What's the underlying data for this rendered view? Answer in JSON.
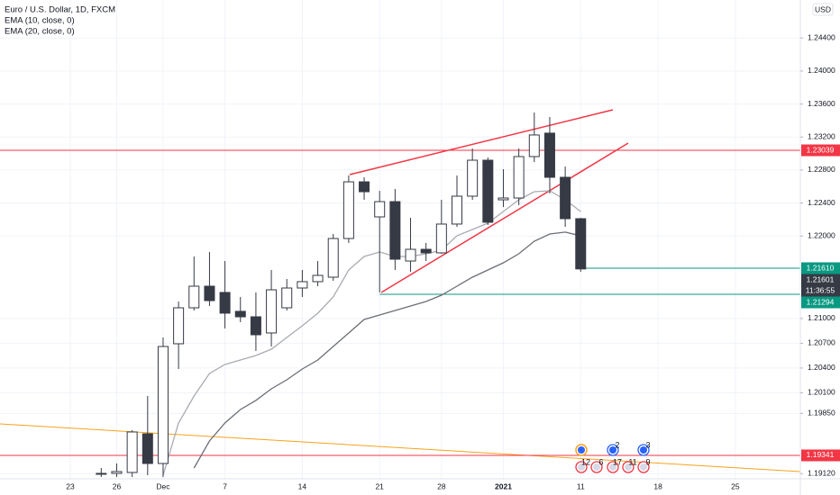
{
  "chart_data": {
    "type": "candlestick",
    "title": "Euro / U.S. Dollar, 1D, FXCM",
    "indicators": [
      "EMA (10, close, 0)",
      "EMA (20, close, 0)"
    ],
    "currency": "USD",
    "categories": [
      "23",
      null,
      null,
      "26",
      null,
      null,
      "Dec",
      null,
      null,
      null,
      "7",
      null,
      null,
      null,
      null,
      "14",
      null,
      null,
      null,
      null,
      "21",
      null,
      null,
      null,
      "28",
      null,
      null,
      null,
      "2021",
      null,
      null,
      null,
      null,
      "11",
      null,
      null,
      null,
      null,
      "18",
      null,
      null,
      null,
      null,
      "25",
      null,
      null,
      null
    ],
    "open": [
      null,
      null,
      1.19112,
      1.19123,
      1.19134,
      1.19603,
      1.19243,
      1.20694,
      1.2113,
      1.21392,
      1.21316,
      1.21087,
      1.21021,
      1.20825,
      1.2113,
      1.2137,
      1.21447,
      1.21501,
      1.2197,
      1.22657,
      1.22232,
      1.22417,
      1.21697,
      1.21839,
      1.21796,
      1.22145,
      1.22483,
      1.22919,
      1.22439,
      1.22461,
      1.22963,
      1.23247,
      1.22712,
      1.2221,
      null,
      null,
      null,
      null,
      null,
      null,
      null,
      null,
      null,
      null,
      null,
      null,
      null
    ],
    "high": [
      null,
      null,
      1.19188,
      1.19243,
      1.19647,
      1.20061,
      1.2077,
      1.21206,
      1.21752,
      1.21806,
      1.21697,
      1.21261,
      1.21316,
      1.21588,
      1.21479,
      1.21588,
      1.21697,
      1.22025,
      1.22734,
      1.22712,
      1.22548,
      1.2257,
      1.22221,
      1.21916,
      1.22439,
      1.22734,
      1.23061,
      1.22952,
      1.2281,
      1.23061,
      1.23497,
      1.23443,
      1.22843,
      1.22221,
      null,
      null,
      null,
      null,
      null,
      null,
      null,
      null,
      null,
      null,
      null,
      null,
      null
    ],
    "low": [
      null,
      null,
      1.19079,
      1.19079,
      1.19079,
      1.19101,
      1.19079,
      1.20388,
      1.21097,
      1.21152,
      1.20879,
      1.20956,
      1.20607,
      1.20661,
      1.21097,
      1.21261,
      1.21392,
      1.21457,
      1.21916,
      1.22439,
      1.21316,
      1.21588,
      1.21567,
      1.21697,
      1.21785,
      1.22112,
      1.22439,
      1.22134,
      1.22352,
      1.22374,
      1.22897,
      1.22516,
      1.22112,
      1.21567,
      null,
      null,
      null,
      null,
      null,
      null,
      null,
      null,
      null,
      null,
      null,
      null,
      null
    ],
    "close": [
      null,
      null,
      1.19123,
      1.19145,
      1.19625,
      1.19243,
      1.20661,
      1.2113,
      1.21392,
      1.21217,
      1.21065,
      1.21021,
      1.20803,
      1.21348,
      1.2137,
      1.21447,
      1.21523,
      1.2197,
      1.22657,
      1.22537,
      1.22417,
      1.21719,
      1.21839,
      1.21796,
      1.22145,
      1.22483,
      1.22919,
      1.22167,
      1.22461,
      1.22963,
      1.23225,
      1.22712,
      1.2221,
      1.21601,
      null,
      null,
      null,
      null,
      null,
      null,
      null,
      null,
      null,
      null,
      null,
      null,
      null
    ],
    "up_color": "#ffffff",
    "down_color": "#363a45",
    "border_color": "#363a45",
    "series": [
      {
        "name": "EMA (10, close, 0)",
        "color": "#a9abb2",
        "values": [
          null,
          null,
          null,
          null,
          null,
          null,
          1.19101,
          1.19734,
          1.20061,
          1.20334,
          1.20443,
          1.20497,
          1.20552,
          1.20628,
          1.2077,
          1.20912,
          1.21065,
          1.21261,
          1.21588,
          1.21752,
          1.21806,
          1.21752,
          1.21752,
          1.21785,
          1.21828,
          1.22003,
          1.22079,
          1.22156,
          1.22297,
          1.22439,
          1.22537,
          1.22548,
          1.22439,
          1.22297,
          null,
          null,
          null,
          null,
          null,
          null,
          null,
          null,
          null,
          null,
          null,
          null,
          null
        ]
      },
      {
        "name": "EMA (20, close, 0)",
        "color": "#6b6e76",
        "values": [
          null,
          null,
          null,
          null,
          null,
          null,
          null,
          null,
          1.19188,
          1.19516,
          1.19734,
          1.19897,
          1.20007,
          1.20148,
          1.20257,
          1.20388,
          1.20497,
          1.20661,
          1.20825,
          1.20988,
          1.21043,
          1.21097,
          1.21152,
          1.21206,
          1.21283,
          1.21392,
          1.21501,
          1.21588,
          1.21676,
          1.21785,
          1.21937,
          1.22025,
          1.22047,
          1.22003,
          null,
          null,
          null,
          null,
          null,
          null,
          null,
          null,
          null,
          null,
          null,
          null,
          null
        ]
      }
    ],
    "levels": [
      {
        "value": 1.23039,
        "color": "#f23645"
      },
      {
        "value": 1.2161,
        "label": "1.21610",
        "color": "#089981"
      },
      {
        "value": 1.21294,
        "color": "#089981"
      },
      {
        "value": 1.19341,
        "color": "#f23645"
      }
    ],
    "last_price": 1.21601,
    "countdown": "11:36:55",
    "events": [
      2,
      3,
      12,
      6,
      17,
      11,
      9
    ],
    "ylim": [
      1.1897,
      1.24861
    ],
    "yticks": [
      {
        "value": 1.244,
        "label": "1.24400"
      },
      {
        "value": 1.24,
        "label": "1.24000"
      },
      {
        "value": 1.236,
        "label": "1.23600"
      },
      {
        "value": 1.232,
        "label": "1.23200"
      },
      {
        "value": 1.228,
        "label": "1.22800"
      },
      {
        "value": 1.224,
        "label": "1.22400"
      },
      {
        "value": 1.22,
        "label": "1.22000"
      },
      {
        "value": 1.21,
        "label": "1.21000"
      },
      {
        "value": 1.207,
        "label": "1.20700"
      },
      {
        "value": 1.204,
        "label": "1.20400"
      },
      {
        "value": 1.201,
        "label": "1.20100"
      },
      {
        "value": 1.1985,
        "label": "1.19850"
      },
      {
        "value": 1.1912,
        "label": "1.19120"
      }
    ],
    "grid": true
  }
}
